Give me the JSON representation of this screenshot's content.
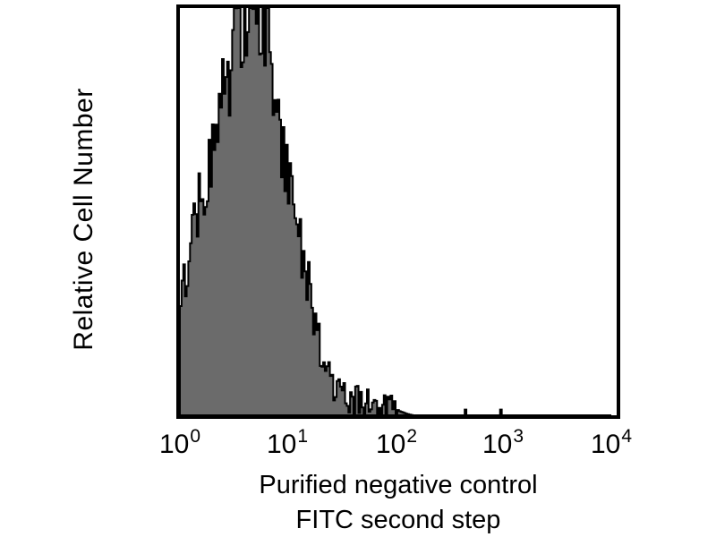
{
  "chart_data": {
    "type": "bar",
    "subtype": "flow-cytometry-histogram",
    "title": "",
    "ylabel": "Relative Cell Number",
    "xlabel_lines": [
      "Purified negative control",
      "FITC second step"
    ],
    "xscale": "log",
    "xlim": [
      1,
      10000
    ],
    "ylim_note": "y axis unlabeled (relative counts), peak clipped at frame top",
    "grid": false,
    "legend": false,
    "frame_color": "#000000",
    "fill_color": "#6b6b6b",
    "outline_color": "#000000",
    "background_color": "#ffffff",
    "x_ticks": [
      {
        "base": "10",
        "exp": "0"
      },
      {
        "base": "10",
        "exp": "1"
      },
      {
        "base": "10",
        "exp": "2"
      },
      {
        "base": "10",
        "exp": "3"
      },
      {
        "base": "10",
        "exp": "4"
      }
    ],
    "peak": {
      "x_mode_approx": 3.5,
      "height_rel": 1.0
    },
    "bins": 256,
    "envelope": [
      [
        0.0,
        0.27
      ],
      [
        0.06,
        0.35
      ],
      [
        0.12,
        0.44
      ],
      [
        0.18,
        0.53
      ],
      [
        0.24,
        0.6
      ],
      [
        0.3,
        0.66
      ],
      [
        0.36,
        0.73
      ],
      [
        0.42,
        0.8
      ],
      [
        0.48,
        0.88
      ],
      [
        0.54,
        0.94
      ],
      [
        0.6,
        0.98
      ],
      [
        0.66,
        1.0
      ],
      [
        0.72,
        0.99
      ],
      [
        0.78,
        0.95
      ],
      [
        0.82,
        0.9
      ],
      [
        0.88,
        0.78
      ],
      [
        0.94,
        0.68
      ],
      [
        1.0,
        0.58
      ],
      [
        1.06,
        0.5
      ],
      [
        1.12,
        0.43
      ],
      [
        1.18,
        0.35
      ],
      [
        1.24,
        0.26
      ],
      [
        1.3,
        0.17
      ],
      [
        1.36,
        0.11
      ],
      [
        1.42,
        0.07
      ],
      [
        1.48,
        0.055
      ],
      [
        1.56,
        0.045
      ],
      [
        1.64,
        0.035
      ],
      [
        1.72,
        0.03
      ],
      [
        1.8,
        0.022
      ],
      [
        1.88,
        0.018
      ],
      [
        1.96,
        0.024
      ],
      [
        2.04,
        0.01
      ],
      [
        2.1,
        0.004
      ],
      [
        2.16,
        0.0
      ],
      [
        4.0,
        0.0
      ]
    ],
    "tail_spikes": [
      {
        "log": 2.64,
        "h": 0.014
      },
      {
        "log": 2.97,
        "h": 0.014
      }
    ]
  }
}
